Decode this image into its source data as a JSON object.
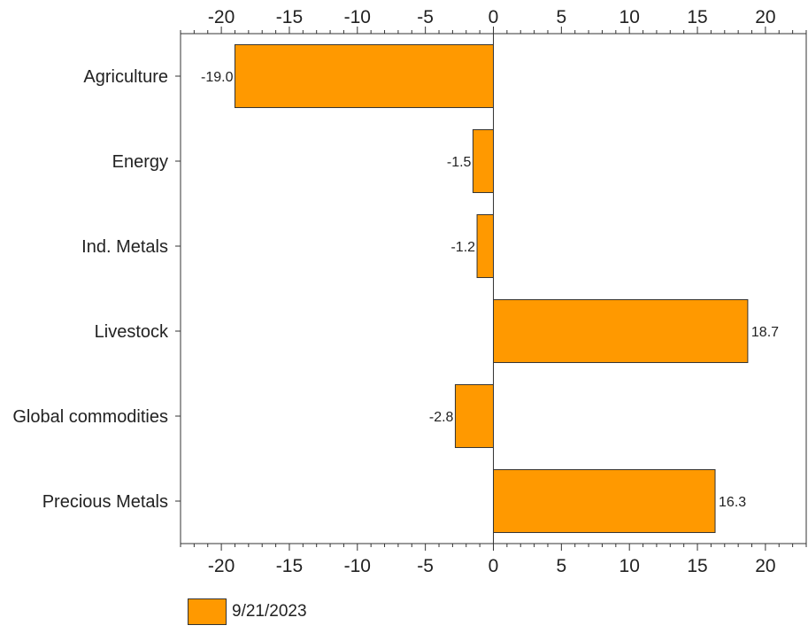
{
  "chart_data": {
    "type": "bar",
    "orientation": "horizontal",
    "categories": [
      "Agriculture",
      "Energy",
      "Ind. Metals",
      "Livestock",
      "Global commodities",
      "Precious Metals"
    ],
    "series": [
      {
        "name": "9/21/2023",
        "values": [
          -19.0,
          -1.5,
          -1.2,
          18.7,
          -2.8,
          16.3
        ],
        "labels": [
          "-19.0",
          "-1.5",
          "-1.2",
          "18.7",
          "-2.8",
          "16.3"
        ],
        "color": "#FF9900"
      }
    ],
    "title": "",
    "xlabel": "",
    "ylabel": "",
    "xlim": [
      -23,
      23
    ],
    "xticks": [
      -20,
      -15,
      -10,
      -5,
      0,
      5,
      10,
      15,
      20
    ],
    "xtick_labels": [
      "-20",
      "-15",
      "-10",
      "-5",
      "0",
      "5",
      "10",
      "15",
      "20"
    ],
    "axis_position": "top and bottom",
    "grid": false,
    "legend": "bottom-left"
  },
  "legend": {
    "label": "9/21/2023",
    "color": "#FF9900"
  }
}
